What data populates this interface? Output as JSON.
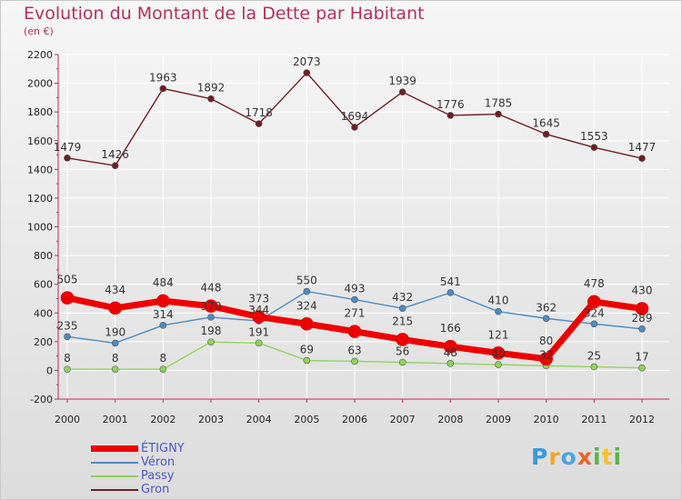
{
  "title": "Evolution du Montant de la Dette par Habitant",
  "subtitle": "(en €)",
  "logo_text": "Proxiti",
  "colors": {
    "axis": "#c0285a",
    "grid": "#ffffff",
    "title": "#b5305c",
    "legend_text": "#4b57c9"
  },
  "chart_data": {
    "type": "line",
    "title": "Evolution du Montant de la Dette par Habitant",
    "subtitle": "(en €)",
    "xlabel": "",
    "ylabel": "",
    "ylim": [
      -200,
      2200
    ],
    "yticks": [
      -200,
      0,
      200,
      400,
      600,
      800,
      1000,
      1200,
      1400,
      1600,
      1800,
      2000,
      2200
    ],
    "x": [
      "2000",
      "2001",
      "2002",
      "2003",
      "2004",
      "2005",
      "2006",
      "2007",
      "2008",
      "2009",
      "2010",
      "2011",
      "2012"
    ],
    "grid": true,
    "legend_position": "bottom-left",
    "series": [
      {
        "name": "ÉTIGNY",
        "color": "#ee0000",
        "values": [
          505,
          434,
          484,
          448,
          373,
          324,
          271,
          215,
          166,
          121,
          80,
          478,
          430
        ],
        "labels": [
          "505",
          "434",
          "484",
          "448",
          "373",
          "324",
          "271",
          "215",
          "166",
          "121",
          "80",
          "478",
          "430"
        ]
      },
      {
        "name": "Véron",
        "color": "#4a8cc4",
        "values": [
          235,
          190,
          314,
          370,
          344,
          550,
          493,
          432,
          541,
          410,
          362,
          324,
          289
        ],
        "labels": [
          "235",
          "190",
          "314",
          "370",
          "344",
          "550",
          "493",
          "432",
          "541",
          "410",
          "362",
          "324",
          "289"
        ]
      },
      {
        "name": "Passy",
        "color": "#8fd45a",
        "values": [
          8,
          8,
          8,
          198,
          191,
          69,
          63,
          56,
          48,
          40,
          32,
          25,
          17
        ],
        "labels": [
          "8",
          "8",
          "8",
          "198",
          "191",
          "69",
          "63",
          "56",
          "48",
          "40",
          "32",
          "25",
          "17"
        ]
      },
      {
        "name": "Gron",
        "color": "#6e1f24",
        "values": [
          1479,
          1426,
          1963,
          1892,
          1718,
          2073,
          1694,
          1939,
          1776,
          1785,
          1645,
          1553,
          1477
        ],
        "labels": [
          "1479",
          "1426",
          "1963",
          "1892",
          "1718",
          "2073",
          "1694",
          "1939",
          "1776",
          "1785",
          "1645",
          "1553",
          "1477"
        ]
      }
    ]
  }
}
